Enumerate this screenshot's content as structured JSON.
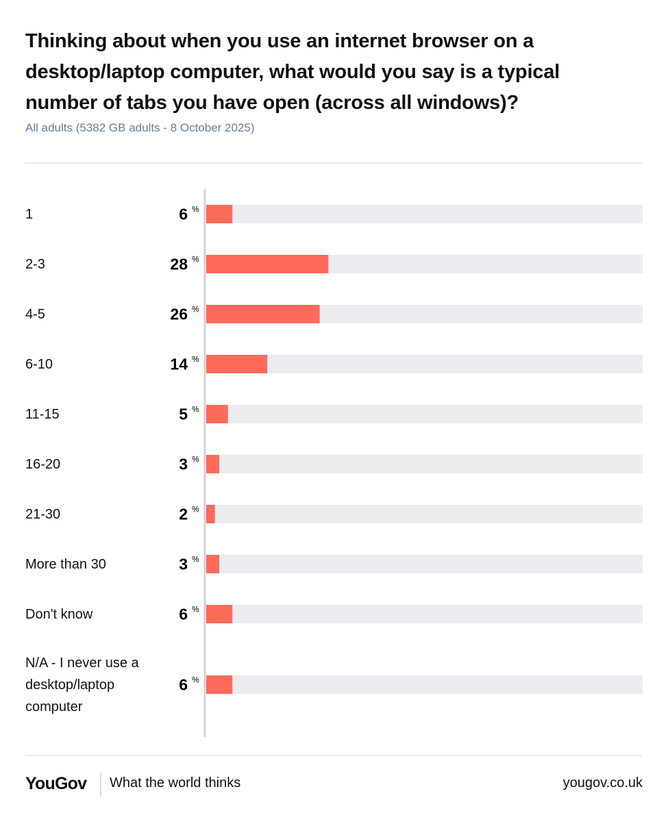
{
  "chart_data": {
    "type": "bar",
    "orientation": "horizontal",
    "title": "Thinking about when you use an internet browser on a desktop/laptop computer, what would you say is a typical number of tabs you have open (across all windows)?",
    "subtitle": "All adults (5382 GB adults - 8 October 2025)",
    "categories": [
      "1",
      "2-3",
      "4-5",
      "6-10",
      "11-15",
      "16-20",
      "21-30",
      "More than 30",
      "Don't know",
      "N/A - I never use a desktop/laptop computer"
    ],
    "values": [
      6,
      28,
      26,
      14,
      5,
      3,
      2,
      3,
      6,
      6
    ],
    "unit": "%",
    "color": "#ff6b5b",
    "track_color": "#ececf0",
    "xlim": [
      0,
      100
    ]
  },
  "footer": {
    "brand": "YouGov",
    "tagline": "What the world thinks",
    "url": "yougov.co.uk"
  }
}
